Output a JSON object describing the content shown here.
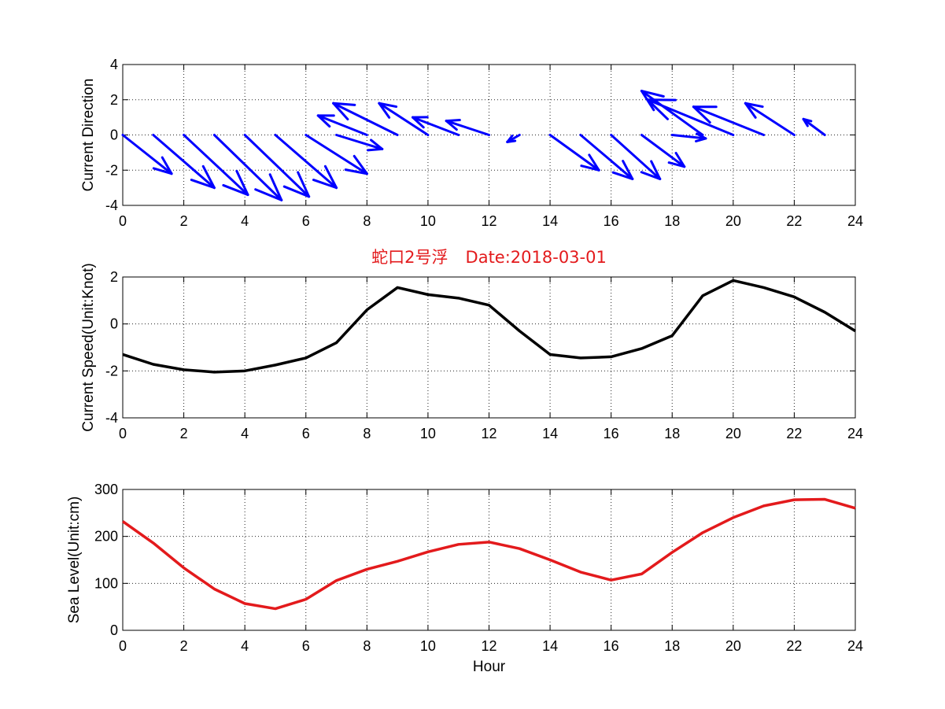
{
  "chart_data": [
    {
      "type": "quiver",
      "ylabel": "Current Direction",
      "xlim": [
        0,
        24
      ],
      "ylim": [
        -4,
        4
      ],
      "xticks": [
        "0",
        "2",
        "4",
        "6",
        "8",
        "10",
        "12",
        "14",
        "16",
        "18",
        "20",
        "22",
        "24"
      ],
      "yticks": [
        "4",
        "2",
        "0",
        "-2",
        "-4"
      ],
      "grid": true,
      "color": "#0000ff",
      "vectors": [
        {
          "x": 0,
          "u": 1.6,
          "v": -2.2
        },
        {
          "x": 1,
          "u": 2.0,
          "v": -3.0
        },
        {
          "x": 2,
          "u": 2.1,
          "v": -3.4
        },
        {
          "x": 3,
          "u": 2.2,
          "v": -3.7
        },
        {
          "x": 4,
          "u": 2.1,
          "v": -3.5
        },
        {
          "x": 5,
          "u": 2.0,
          "v": -3.0
        },
        {
          "x": 6,
          "u": 2.0,
          "v": -2.2
        },
        {
          "x": 7,
          "u": 1.5,
          "v": -0.8
        },
        {
          "x": 8,
          "u": -1.6,
          "v": 1.1
        },
        {
          "x": 9,
          "u": -2.1,
          "v": 1.8
        },
        {
          "x": 10,
          "u": -1.6,
          "v": 1.8
        },
        {
          "x": 11,
          "u": -1.5,
          "v": 1.0
        },
        {
          "x": 12,
          "u": -1.4,
          "v": 0.8
        },
        {
          "x": 13,
          "u": -0.4,
          "v": -0.4
        },
        {
          "x": 14,
          "u": 1.6,
          "v": -2.0
        },
        {
          "x": 15,
          "u": 1.7,
          "v": -2.5
        },
        {
          "x": 16,
          "u": 1.6,
          "v": -2.5
        },
        {
          "x": 17,
          "u": 1.4,
          "v": -1.8
        },
        {
          "x": 18,
          "u": 1.1,
          "v": -0.2
        },
        {
          "x": 19,
          "u": -2.0,
          "v": 2.5
        },
        {
          "x": 20,
          "u": -2.8,
          "v": 2.0
        },
        {
          "x": 21,
          "u": -2.3,
          "v": 1.6
        },
        {
          "x": 22,
          "u": -1.6,
          "v": 1.8
        },
        {
          "x": 23,
          "u": -0.7,
          "v": 0.9
        }
      ]
    },
    {
      "type": "line",
      "title_site": "蛇口2号浮",
      "title_date": "Date:2018-03-01",
      "title_color": "#e31a1c",
      "ylabel": "Current Speed(Unit:Knot)",
      "xlim": [
        0,
        24
      ],
      "ylim": [
        -4,
        2
      ],
      "xticks": [
        "0",
        "2",
        "4",
        "6",
        "8",
        "10",
        "12",
        "14",
        "16",
        "18",
        "20",
        "22",
        "24"
      ],
      "yticks": [
        "2",
        "0",
        "-2",
        "-4"
      ],
      "grid": true,
      "color": "#000000",
      "x": [
        0,
        1,
        2,
        3,
        4,
        5,
        6,
        7,
        8,
        9,
        10,
        11,
        12,
        13,
        14,
        15,
        16,
        17,
        18,
        19,
        20,
        21,
        22,
        23,
        24
      ],
      "values": [
        -1.3,
        -1.72,
        -1.95,
        -2.05,
        -2.0,
        -1.75,
        -1.45,
        -0.8,
        0.6,
        1.55,
        1.25,
        1.1,
        0.8,
        -0.3,
        -1.3,
        -1.45,
        -1.4,
        -1.05,
        -0.5,
        1.2,
        1.85,
        1.55,
        1.15,
        0.5,
        -0.3
      ]
    },
    {
      "type": "line",
      "ylabel": "Sea Level(Unit:cm)",
      "xlabel": "Hour",
      "xlim": [
        0,
        24
      ],
      "ylim": [
        0,
        300
      ],
      "xticks": [
        "0",
        "2",
        "4",
        "6",
        "8",
        "10",
        "12",
        "14",
        "16",
        "18",
        "20",
        "22",
        "24"
      ],
      "yticks": [
        "300",
        "200",
        "100",
        "0"
      ],
      "grid": true,
      "color": "#e31a1c",
      "x": [
        0,
        1,
        2,
        3,
        4,
        5,
        6,
        7,
        8,
        9,
        10,
        11,
        12,
        13,
        14,
        15,
        16,
        17,
        18,
        19,
        20,
        21,
        22,
        23,
        24
      ],
      "values": [
        232,
        186,
        133,
        88,
        57,
        46,
        66,
        106,
        130,
        147,
        167,
        183,
        188,
        174,
        150,
        124,
        107,
        120,
        166,
        208,
        240,
        265,
        278,
        279,
        260
      ]
    }
  ]
}
